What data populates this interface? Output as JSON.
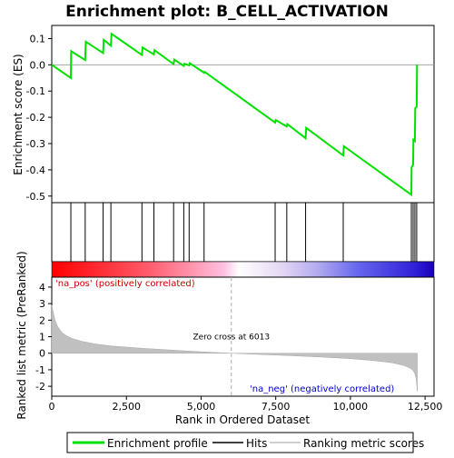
{
  "chart_data": {
    "type": "line",
    "title": "Enrichment plot: B_CELL_ACTIVATION",
    "xlabel": "Rank in Ordered Dataset",
    "x_ticks": [
      0,
      2500,
      5000,
      7500,
      10000,
      12500
    ],
    "x_tick_labels": [
      "0",
      "2,500",
      "5,000",
      "7,500",
      "10,000",
      "12,500"
    ],
    "xlim": [
      0,
      12800
    ],
    "es_panel": {
      "ylabel": "Enrichment score (ES)",
      "ylim": [
        -0.525,
        0.15
      ],
      "y_ticks": [
        0.1,
        0.0,
        -0.1,
        -0.2,
        -0.3,
        -0.4,
        -0.5
      ],
      "y_tick_labels": [
        "0.1",
        "0.0",
        "-0.1",
        "-0.2",
        "-0.3",
        "-0.4",
        "-0.5"
      ],
      "series": [
        {
          "name": "Enrichment profile",
          "color": "#00e000",
          "x": [
            0,
            640,
            650,
            1120,
            1140,
            1720,
            1740,
            1980,
            2000,
            3020,
            3040,
            3420,
            3440,
            4080,
            4100,
            4420,
            4440,
            4600,
            4620,
            5100,
            5120,
            7480,
            7500,
            7870,
            7890,
            8500,
            8520,
            9760,
            9780,
            12040,
            12050,
            12100,
            12110,
            12160,
            12170,
            12220,
            12230
          ],
          "y": [
            0.0,
            -0.05,
            0.052,
            0.018,
            0.088,
            0.045,
            0.095,
            0.073,
            0.118,
            0.038,
            0.066,
            0.04,
            0.056,
            0.003,
            0.02,
            -0.004,
            0.004,
            -0.002,
            0.006,
            -0.03,
            -0.027,
            -0.22,
            -0.21,
            -0.235,
            -0.226,
            -0.28,
            -0.24,
            -0.345,
            -0.31,
            -0.495,
            -0.39,
            -0.38,
            -0.285,
            -0.29,
            -0.165,
            -0.16,
            0.0
          ]
        }
      ],
      "hits": [
        640,
        1120,
        1720,
        1980,
        3020,
        3420,
        4080,
        4420,
        4600,
        5100,
        7480,
        7870,
        8500,
        9760,
        12040,
        12100,
        12160,
        12220
      ]
    },
    "rank_panel": {
      "ylabel": "Ranked list metric (PreRanked)",
      "ylim": [
        -2.6,
        4.6
      ],
      "y_ticks": [
        4,
        3,
        2,
        1,
        0,
        -1,
        -2
      ],
      "y_tick_labels": [
        "4",
        "3",
        "2",
        "1",
        "0",
        "-1",
        "-2"
      ],
      "series_name": "Ranking metric scores",
      "x": [
        0,
        100,
        200,
        350,
        500,
        700,
        1000,
        1500,
        2000,
        3000,
        4000,
        5000,
        6013,
        7000,
        8000,
        9000,
        10000,
        10800,
        11400,
        11800,
        12000,
        12100,
        12160,
        12200,
        12240
      ],
      "y": [
        2.9,
        2.05,
        1.6,
        1.25,
        1.05,
        0.88,
        0.72,
        0.55,
        0.44,
        0.3,
        0.19,
        0.09,
        0.0,
        -0.08,
        -0.15,
        -0.23,
        -0.33,
        -0.45,
        -0.58,
        -0.75,
        -0.9,
        -1.05,
        -1.25,
        -1.55,
        -2.3
      ],
      "zero_cross_x": 6013,
      "zero_cross_label": "Zero cross at 6013",
      "pos_label": "'na_pos' (positively correlated)",
      "neg_label": "'na_neg' (negatively correlated)"
    },
    "legend": {
      "placement": "bottom",
      "entries": [
        {
          "label": "Enrichment profile",
          "color": "#00e000"
        },
        {
          "label": "Hits",
          "color": "#000000"
        },
        {
          "label": "Ranking metric scores",
          "color": "#c0c0c0"
        }
      ]
    },
    "colors": {
      "pos_label": "#cc0000",
      "neg_label": "#0000cc",
      "zero_line": "#aaaaaa"
    }
  }
}
